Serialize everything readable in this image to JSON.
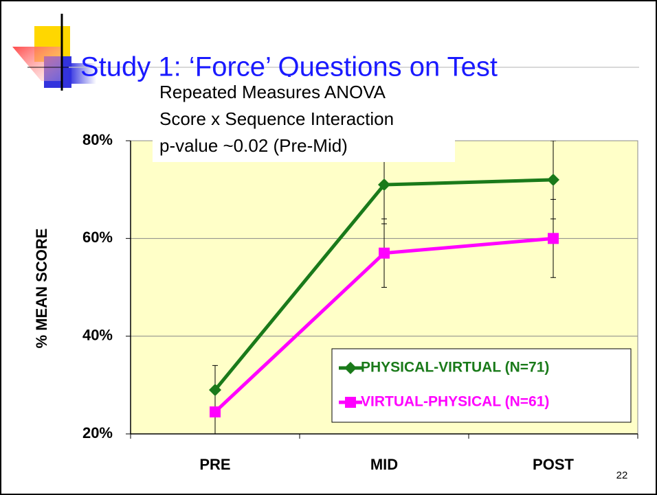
{
  "slide": {
    "title": "Study 1: ‘Force’ Questions on Test",
    "page_number": "22"
  },
  "chart_data": {
    "type": "line",
    "annotation": [
      "Repeated Measures ANOVA",
      "Score x Sequence Interaction",
      "p-value ~0.02 (Pre-Mid)"
    ],
    "y_label": "%  MEAN SCORE",
    "categories": [
      "PRE",
      "MID",
      "POST"
    ],
    "ylim": [
      20,
      80
    ],
    "yticks": [
      {
        "value": 20,
        "label": "20%"
      },
      {
        "value": 40,
        "label": "40%"
      },
      {
        "value": 60,
        "label": "60%"
      },
      {
        "value": 80,
        "label": "80%"
      }
    ],
    "grid": true,
    "legend": "lower right",
    "series": [
      {
        "name": "PHYSICAL-VIRTUAL (N=71)",
        "color": "#1a7a1a",
        "marker": "diamond",
        "values": [
          29,
          71,
          72
        ],
        "errors": [
          5,
          8,
          8
        ]
      },
      {
        "name": "VIRTUAL-PHYSICAL (N=61)",
        "color": "#ff00ff",
        "marker": "square",
        "values": [
          24.5,
          57,
          60
        ],
        "errors": [
          5,
          7,
          8
        ]
      }
    ]
  }
}
